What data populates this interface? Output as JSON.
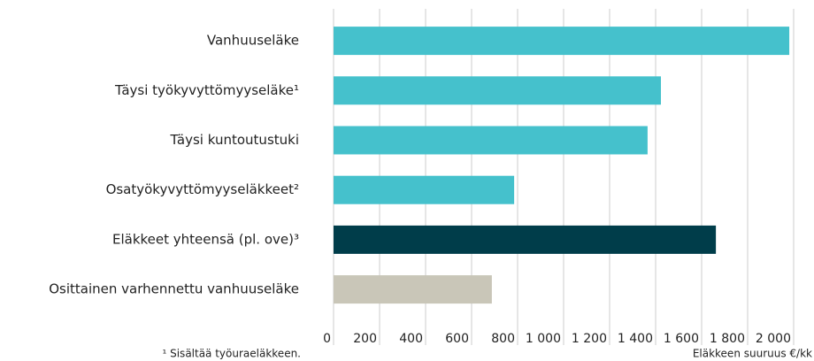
{
  "chart_data": {
    "type": "hbar",
    "categories": [
      "Vanhuuseläke",
      "Täysi työkyvyttömyyseläke¹",
      "Täysi kuntoutustuki",
      "Osatyökyvyttömyyseläkkeet²",
      "Eläkkeet yhteensä (pl. ove)³",
      "Osittainen varhennettu vanhuuseläke"
    ],
    "values": [
      1981,
      1423,
      1365,
      785,
      1662,
      688
    ],
    "colors": [
      "#45c1cc",
      "#45c1cc",
      "#45c1cc",
      "#45c1cc",
      "#003d4a",
      "#c9c6b8"
    ],
    "xlim": [
      0,
      2000
    ],
    "xticks": [
      0,
      200,
      400,
      600,
      800,
      {
        "value": 1000,
        "label": "1 000"
      },
      {
        "value": 1200,
        "label": "1 200"
      },
      {
        "value": 1400,
        "label": "1 400"
      },
      {
        "value": 1600,
        "label": "1 600"
      },
      {
        "value": 1800,
        "label": "1 800"
      },
      {
        "value": 2000,
        "label": "2 000"
      }
    ],
    "grid": true,
    "xlabel": "Eläkkeen suuruus €/kk",
    "footnote": "¹ Sisältää työuraeläkkeen."
  }
}
